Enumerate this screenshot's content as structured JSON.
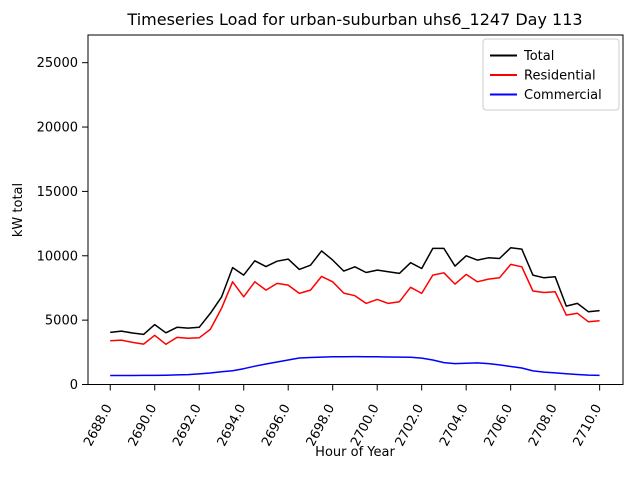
{
  "figure": {
    "background": "#ffffff"
  },
  "chart_data": {
    "type": "line",
    "title": "Timeseries Load for urban-suburban uhs6_1247  Day 113",
    "xlabel": "Hour of Year",
    "ylabel": "kW total",
    "xlim": [
      2687.0,
      2711.05
    ],
    "ylim": [
      0,
      27150
    ],
    "grid": false,
    "legend_position": "upper right",
    "x_tick_rotation": 62,
    "xticks": [
      2688,
      2690,
      2692,
      2694,
      2696,
      2698,
      2700,
      2702,
      2704,
      2706,
      2708,
      2710
    ],
    "xtick_labels": [
      "2688.0",
      "2690.0",
      "2692.0",
      "2694.0",
      "2696.0",
      "2698.0",
      "2700.0",
      "2702.0",
      "2704.0",
      "2706.0",
      "2708.0",
      "2710.0"
    ],
    "yticks": [
      0,
      5000,
      10000,
      15000,
      20000,
      25000
    ],
    "ytick_labels": [
      "0",
      "5000",
      "10000",
      "15000",
      "20000",
      "25000"
    ],
    "x": [
      2688.0,
      2688.5,
      2689.0,
      2689.5,
      2690.0,
      2690.5,
      2691.0,
      2691.5,
      2692.0,
      2692.5,
      2693.0,
      2693.5,
      2694.0,
      2694.5,
      2695.0,
      2695.5,
      2696.0,
      2696.5,
      2697.0,
      2697.5,
      2698.0,
      2698.5,
      2699.0,
      2699.5,
      2700.0,
      2700.5,
      2701.0,
      2701.5,
      2702.0,
      2702.5,
      2703.0,
      2703.5,
      2704.0,
      2704.5,
      2705.0,
      2705.5,
      2706.0,
      2706.5,
      2707.0,
      2707.5,
      2708.0,
      2708.5,
      2709.0,
      2709.5,
      2710.0
    ],
    "series": [
      {
        "name": "Total",
        "color": "#000000",
        "values": [
          4050,
          4150,
          4000,
          3890,
          4650,
          4020,
          4440,
          4380,
          4440,
          5520,
          6790,
          9080,
          8500,
          9610,
          9160,
          9580,
          9740,
          8940,
          9270,
          10380,
          9660,
          8810,
          9140,
          8700,
          8890,
          8760,
          8630,
          9460,
          9010,
          10570,
          10570,
          9200,
          10000,
          9660,
          9840,
          9790,
          10620,
          10520,
          8500,
          8290,
          8370,
          6090,
          6300,
          5650,
          5740
        ]
      },
      {
        "name": "Residential",
        "color": "#ff0000",
        "values": [
          3400,
          3450,
          3270,
          3140,
          3820,
          3120,
          3660,
          3590,
          3630,
          4280,
          5910,
          7980,
          6810,
          7980,
          7330,
          7850,
          7720,
          7080,
          7330,
          8400,
          7980,
          7100,
          6900,
          6300,
          6610,
          6300,
          6430,
          7550,
          7080,
          8500,
          8680,
          7800,
          8550,
          7980,
          8190,
          8290,
          9330,
          9140,
          7260,
          7150,
          7200,
          5390,
          5530,
          4870,
          4950
        ]
      },
      {
        "name": "Commercial",
        "color": "#0000ff",
        "values": [
          700,
          700,
          700,
          705,
          710,
          725,
          745,
          770,
          820,
          890,
          990,
          1070,
          1230,
          1420,
          1590,
          1750,
          1900,
          2060,
          2100,
          2130,
          2150,
          2160,
          2170,
          2160,
          2150,
          2140,
          2130,
          2120,
          2050,
          1900,
          1700,
          1620,
          1650,
          1680,
          1620,
          1520,
          1400,
          1280,
          1060,
          960,
          900,
          840,
          780,
          730,
          710
        ]
      }
    ]
  }
}
